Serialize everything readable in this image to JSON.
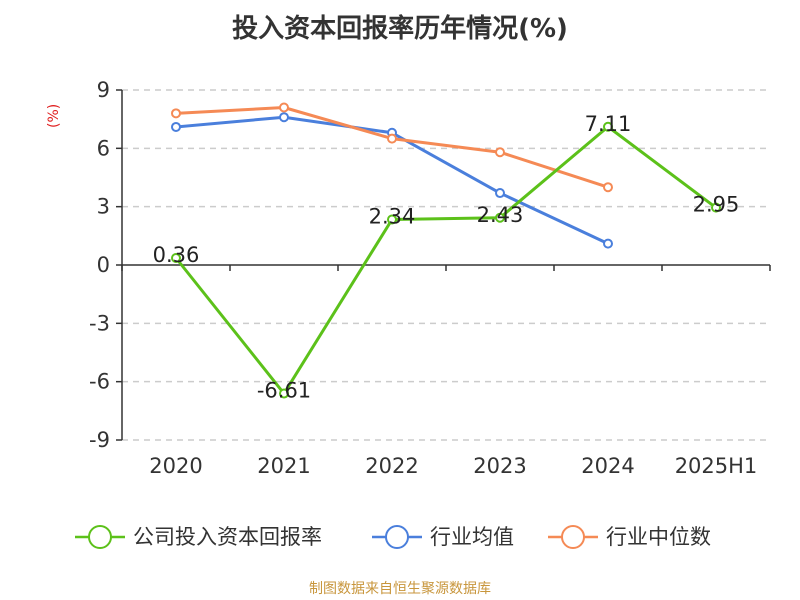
{
  "chart_data": {
    "type": "line",
    "title": "投入资本回报率历年情况(%)",
    "unit_label": "(%)",
    "categories": [
      "2020",
      "2021",
      "2022",
      "2023",
      "2024",
      "2025H1"
    ],
    "ylim": [
      -9,
      9
    ],
    "yticks": [
      9,
      6,
      3,
      0,
      -3,
      -6,
      -9
    ],
    "grid": true,
    "legend_position": "bottom",
    "series": [
      {
        "name": "公司投入资本回报率",
        "color": "#5cc11a",
        "values": [
          0.36,
          -6.61,
          2.34,
          2.43,
          7.11,
          2.95
        ],
        "show_labels": true
      },
      {
        "name": "行业均值",
        "color": "#4a7fdc",
        "values": [
          7.1,
          7.6,
          6.8,
          3.7,
          1.1,
          null
        ],
        "show_labels": false
      },
      {
        "name": "行业中位数",
        "color": "#f58a55",
        "values": [
          7.8,
          8.1,
          6.5,
          5.8,
          4.0,
          null
        ],
        "show_labels": false
      }
    ],
    "source": "制图数据来自恒生聚源数据库",
    "colors": {
      "unit": "#e02020",
      "source": "#c8963c",
      "axis": "#333333",
      "grid": "#cccccc"
    }
  }
}
